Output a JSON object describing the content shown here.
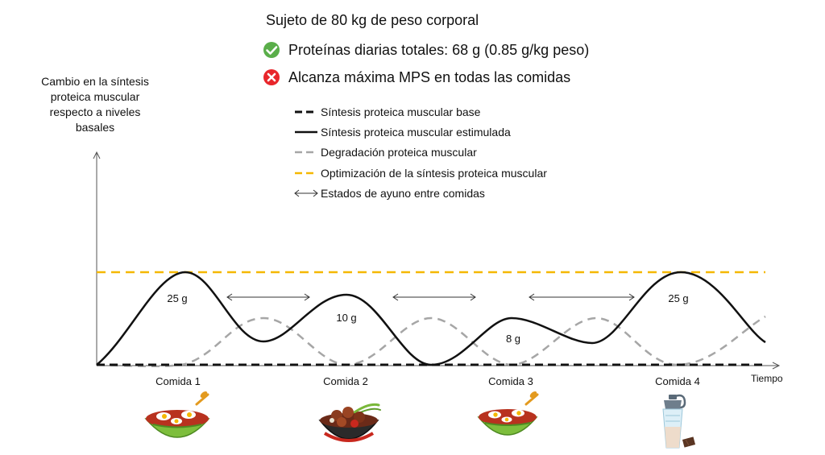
{
  "header": {
    "title": "Sujeto de 80 kg de peso corporal",
    "check_line": "Proteínas diarias totales: 68 g (0.85 g/kg peso)",
    "cross_line": "Alcanza máxima MPS en todas las comidas"
  },
  "axes": {
    "y_label_lines": [
      "Cambio en la síntesis",
      "proteica muscular",
      "respecto a niveles",
      "basales"
    ],
    "x_label": "Tiempo"
  },
  "legend": [
    {
      "label": "Síntesis proteica muscular base",
      "style": "base"
    },
    {
      "label": "Síntesis proteica muscular estimulada",
      "style": "stimulated"
    },
    {
      "label": "Degradación proteica muscular",
      "style": "degradation"
    },
    {
      "label": "Optimización de la síntesis proteica muscular",
      "style": "optimal"
    },
    {
      "label": "Estados de ayuno entre comidas",
      "style": "fasting"
    }
  ],
  "meals": [
    {
      "name": "Comida 1",
      "protein": "25 g",
      "food": "bowl-eggs"
    },
    {
      "name": "Comida 2",
      "protein": "10 g",
      "food": "bowl-meat"
    },
    {
      "name": "Comida 3",
      "protein": "8 g",
      "food": "bowl-eggs"
    },
    {
      "name": "Comida 4",
      "protein": "25 g",
      "food": "shaker"
    }
  ],
  "colors": {
    "optimal": "#F5B800",
    "degradation": "#A6A6A6",
    "check": "#5AAE4A",
    "cross": "#E8262B"
  }
}
